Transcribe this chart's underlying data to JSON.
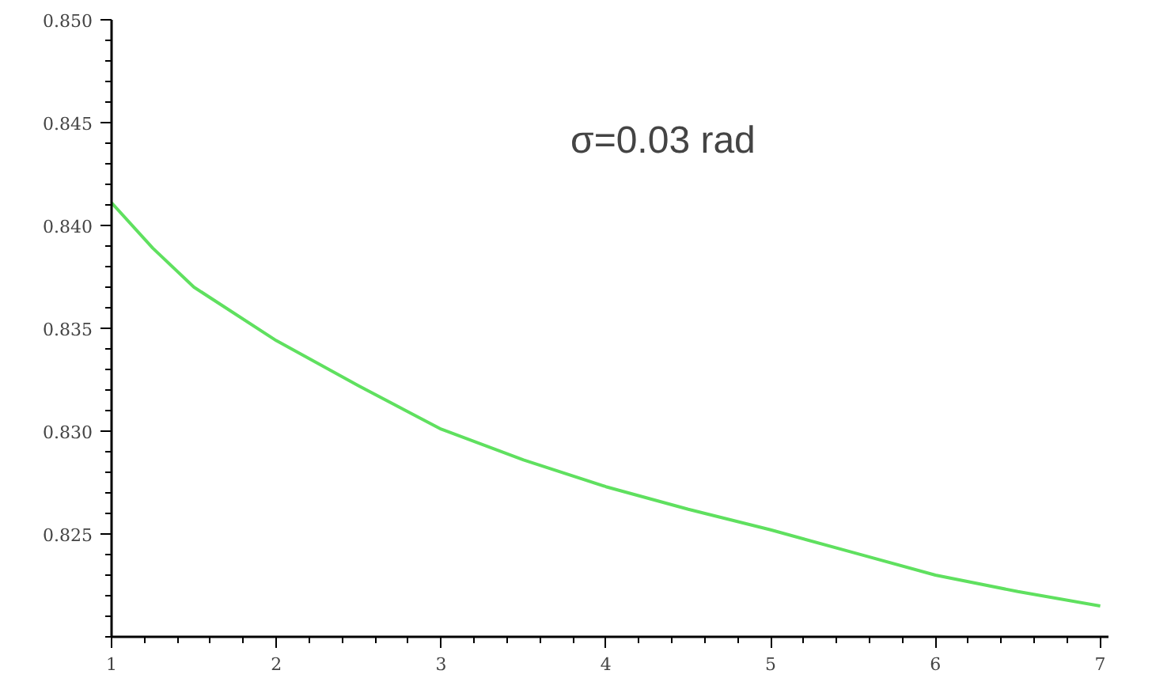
{
  "chart_data": {
    "type": "line",
    "x": [
      1,
      1.25,
      1.5,
      2,
      2.5,
      3,
      3.5,
      4,
      4.5,
      5,
      5.5,
      6,
      6.5,
      7
    ],
    "series": [
      {
        "color": "#5fe05f",
        "values": [
          0.8411,
          0.8389,
          0.837,
          0.8344,
          0.8322,
          0.8301,
          0.8286,
          0.8273,
          0.8262,
          0.8252,
          0.8241,
          0.823,
          0.8222,
          0.8215
        ]
      }
    ],
    "xlim": [
      1,
      7.05
    ],
    "ylim": [
      0.82,
      0.85
    ],
    "xticks": [
      1,
      2,
      3,
      4,
      5,
      6,
      7
    ],
    "yticks": [
      {
        "value": 0.825,
        "label": "0.825"
      },
      {
        "value": 0.83,
        "label": "0.830"
      },
      {
        "value": 0.835,
        "label": "0.835"
      },
      {
        "value": 0.84,
        "label": "0.840"
      },
      {
        "value": 0.845,
        "label": "0.845"
      },
      {
        "value": 0.85,
        "label": "0.850"
      }
    ],
    "annotations": [
      "σ=0.03 rad"
    ],
    "grid": false,
    "marker": "none",
    "line_style": "solid"
  }
}
